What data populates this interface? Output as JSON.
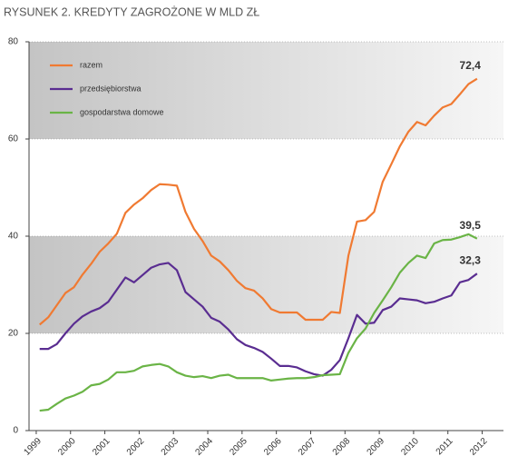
{
  "chart_data": {
    "type": "line",
    "title": "RYSUNEK 2.  KREDYTY ZAGROŻONE W MLD ZŁ",
    "x": [
      1999.1,
      1999.35,
      1999.6,
      1999.85,
      2000.1,
      2000.35,
      2000.6,
      2000.85,
      2001.1,
      2001.35,
      2001.6,
      2001.85,
      2002.1,
      2002.35,
      2002.6,
      2002.85,
      2003.1,
      2003.35,
      2003.6,
      2003.85,
      2004.1,
      2004.35,
      2004.6,
      2004.85,
      2005.1,
      2005.35,
      2005.6,
      2005.85,
      2006.1,
      2006.35,
      2006.6,
      2006.85,
      2007.1,
      2007.35,
      2007.6,
      2007.85,
      2008.1,
      2008.35,
      2008.6,
      2008.85,
      2009.1,
      2009.35,
      2009.6,
      2009.85,
      2010.1,
      2010.35,
      2010.6,
      2010.85,
      2011.1,
      2011.35,
      2011.6,
      2011.85
    ],
    "series": [
      {
        "name": "razem",
        "color": "#f07a32",
        "end_label": "72,4",
        "values": [
          21.8,
          23.3,
          25.8,
          28.3,
          29.5,
          32.1,
          34.3,
          36.8,
          38.5,
          40.5,
          44.8,
          46.5,
          47.8,
          49.5,
          50.7,
          50.6,
          50.4,
          45,
          41.5,
          39,
          36,
          34.8,
          33,
          30.8,
          29.3,
          28.8,
          27.2,
          25,
          24.3,
          24.3,
          24.3,
          22.8,
          22.8,
          22.8,
          24.4,
          24.2,
          36,
          43,
          43.3,
          45,
          51.2,
          54.8,
          58.5,
          61.5,
          63.5,
          62.8,
          64.8,
          66.5,
          67.2,
          69.2,
          71.3,
          72.4
        ]
      },
      {
        "name": "przedsiębiorstwa",
        "color": "#5a2d91",
        "end_label": "32,3",
        "values": [
          16.8,
          16.8,
          17.8,
          20,
          22,
          23.5,
          24.5,
          25.2,
          26.5,
          29,
          31.5,
          30.5,
          32,
          33.5,
          34.2,
          34.5,
          33,
          28.5,
          27,
          25.5,
          23.2,
          22.4,
          20.8,
          18.8,
          17.6,
          17,
          16.2,
          14.8,
          13.3,
          13.3,
          13,
          12.2,
          11.6,
          11.3,
          12.5,
          14.5,
          19,
          23.8,
          22,
          22.2,
          24.8,
          25.5,
          27.2,
          27,
          26.8,
          26.2,
          26.5,
          27.2,
          27.8,
          30.5,
          31,
          32.3
        ]
      },
      {
        "name": "gospodarstwa domowe",
        "color": "#6ab446",
        "end_label": "39,5",
        "values": [
          4.1,
          4.3,
          5.5,
          6.6,
          7.2,
          8,
          9.3,
          9.6,
          10.5,
          12,
          12,
          12.3,
          13.2,
          13.5,
          13.7,
          13.2,
          12,
          11.3,
          11,
          11.2,
          10.8,
          11.3,
          11.5,
          10.8,
          10.8,
          10.8,
          10.8,
          10.3,
          10.5,
          10.7,
          10.8,
          10.8,
          11,
          11.4,
          11.5,
          11.6,
          16,
          19,
          21,
          24.2,
          26.8,
          29.5,
          32.5,
          34.5,
          36,
          35.5,
          38.5,
          39.2,
          39.3,
          39.8,
          40.4,
          39.5
        ]
      }
    ],
    "xlim": [
      1998.79,
      2012.62
    ],
    "xticks": [
      1999,
      2000,
      2001,
      2002,
      2003,
      2004,
      2005,
      2006,
      2007,
      2008,
      2009,
      2010,
      2011,
      2012
    ],
    "ylim": [
      0,
      80
    ],
    "yticks": [
      0,
      20,
      40,
      60,
      80
    ],
    "grid": true,
    "legend": "upper left"
  }
}
